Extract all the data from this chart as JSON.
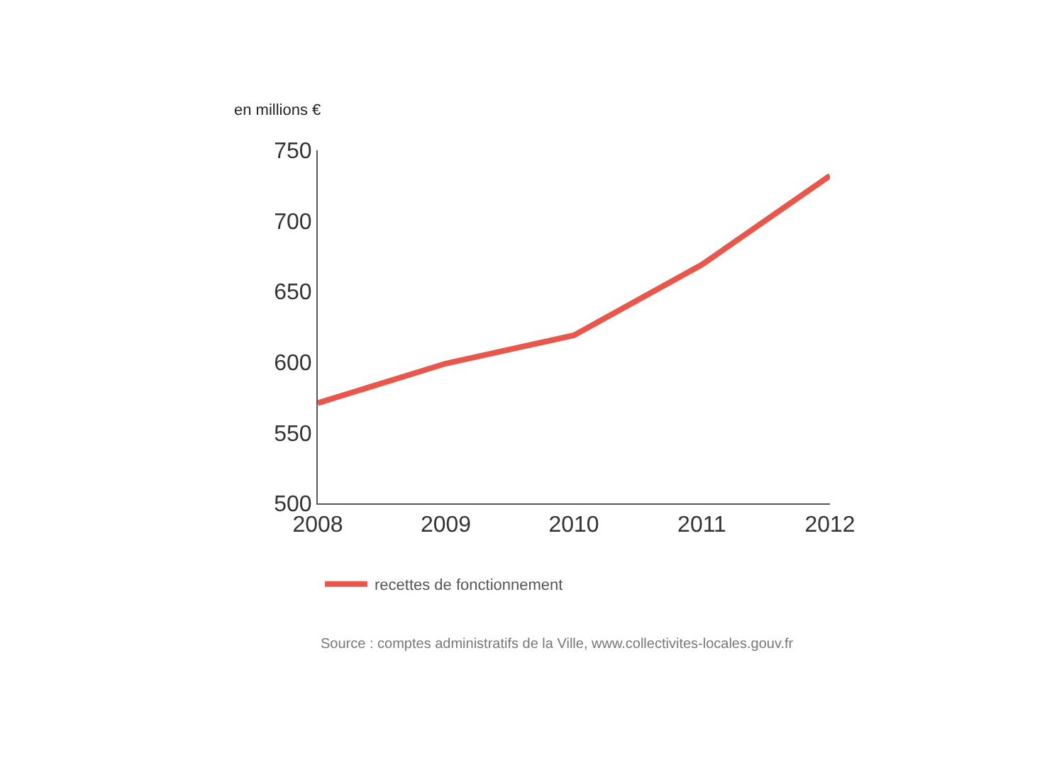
{
  "chart_data": {
    "type": "line",
    "ylabel": "en millions €",
    "categories": [
      "2008",
      "2009",
      "2010",
      "2011",
      "2012"
    ],
    "series": [
      {
        "name": "recettes de fonctionnement",
        "color": "#e8574a",
        "values": [
          571,
          599,
          619,
          669,
          732
        ]
      }
    ],
    "ylim": [
      500,
      750
    ],
    "yticks": [
      500,
      550,
      600,
      650,
      700,
      750
    ],
    "legend": "bottom",
    "marker": "none",
    "line_style": "solid",
    "annotations": [
      "Source : comptes administratifs de la Ville, www.collectivites-locales.gouv.fr"
    ]
  }
}
